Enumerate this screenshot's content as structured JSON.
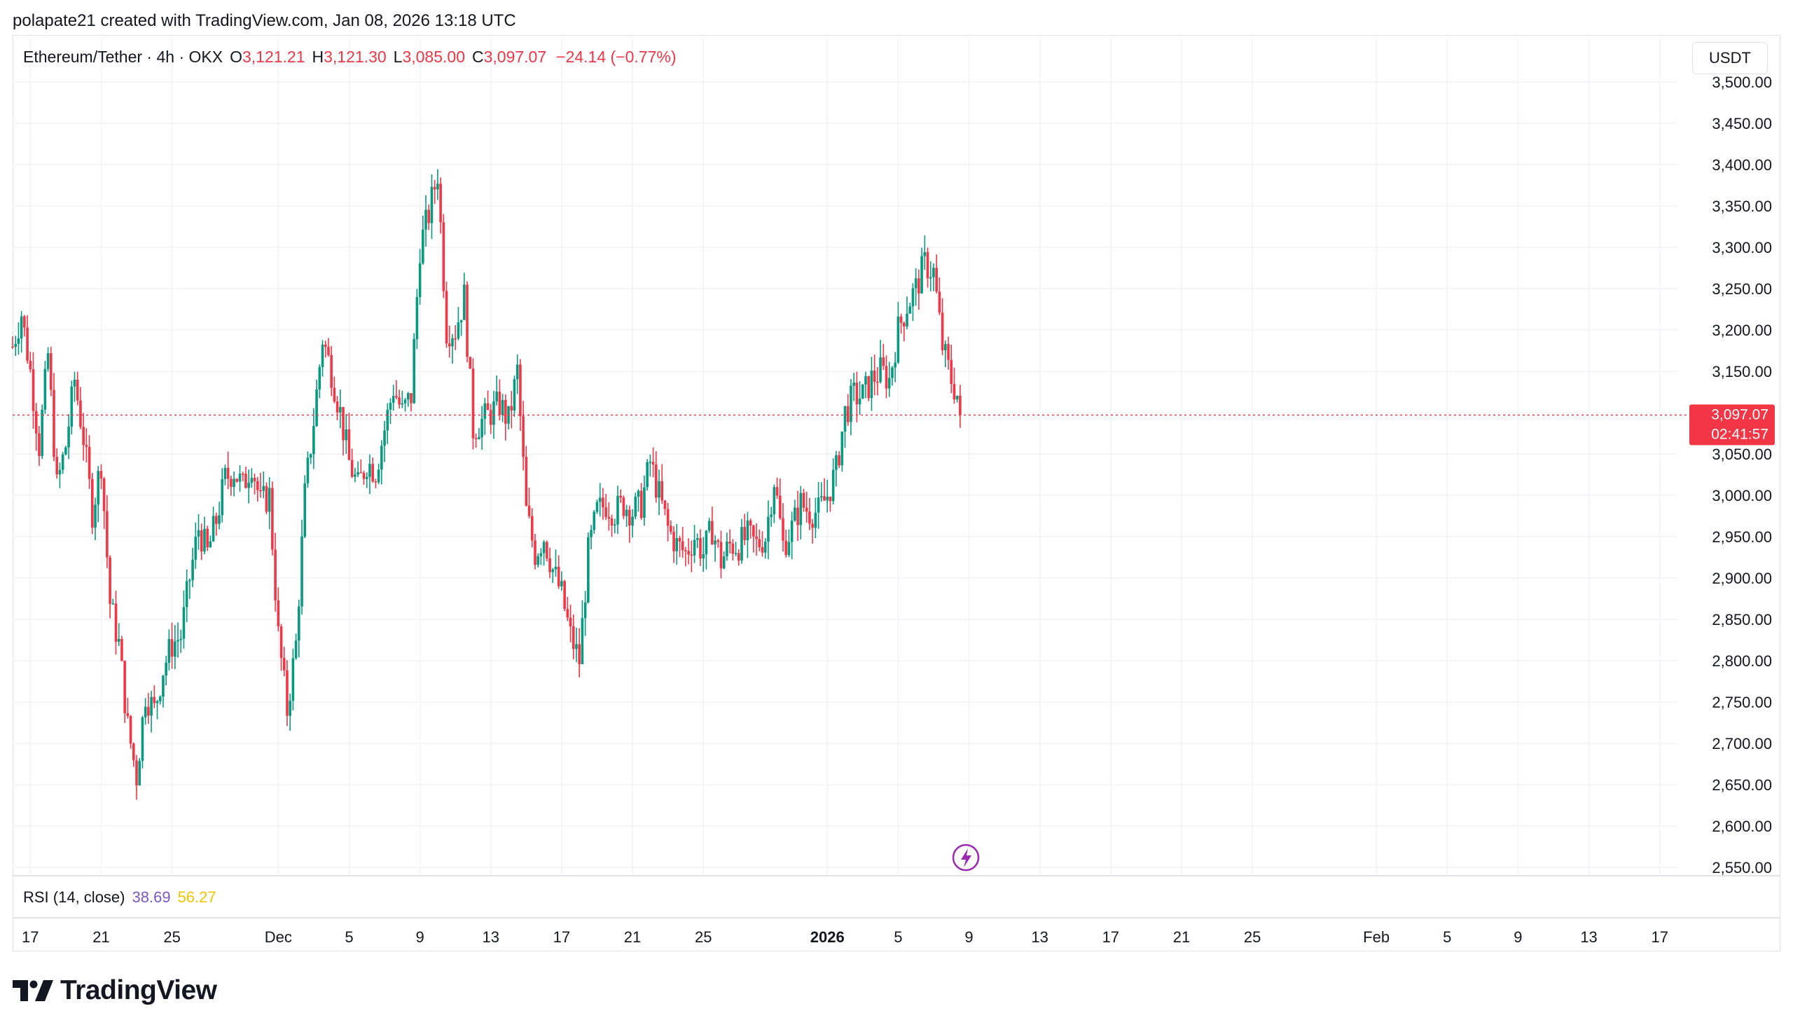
{
  "caption": "polapate21 created with TradingView.com, Jan 08, 2026 13:18 UTC",
  "legend": {
    "symbol": "Ethereum/Tether · 4h · OKX",
    "open_label": "O",
    "open": "3,121.21",
    "high_label": "H",
    "high": "3,121.30",
    "low_label": "L",
    "low": "3,085.00",
    "close_label": "C",
    "close": "3,097.07",
    "change": "−24.14 (−0.77%)"
  },
  "currency_button": "USDT",
  "price_badge": {
    "price": "3,097.07",
    "countdown": "02:41:57"
  },
  "rsi": {
    "label": "RSI (14, close)",
    "value1": "38.69",
    "value2": "56.27"
  },
  "brand": "TradingView",
  "colors": {
    "up": "#089981",
    "down": "#f23645",
    "grid": "#f0f3fa",
    "axis_text": "#131722",
    "last_price": "#f23645"
  },
  "icons": [
    "lightning-icon",
    "tradingview-logo-icon"
  ],
  "chart_data": {
    "type": "candlestick",
    "interval": "4h",
    "y_ticks": [
      2550,
      2600,
      2650,
      2700,
      2750,
      2800,
      2850,
      2900,
      2950,
      3000,
      3050,
      3100,
      3150,
      3200,
      3250,
      3300,
      3350,
      3400,
      3450,
      3500
    ],
    "y_tick_labels": [
      "2,550.00",
      "2,600.00",
      "2,650.00",
      "2,700.00",
      "2,750.00",
      "2,800.00",
      "2,850.00",
      "2,900.00",
      "2,950.00",
      "3,000.00",
      "3,050.00",
      "3,100.00",
      "3,150.00",
      "3,200.00",
      "3,250.00",
      "3,300.00",
      "3,350.00",
      "3,400.00",
      "3,450.00",
      "3,500.00"
    ],
    "ylim": [
      2540,
      3510
    ],
    "x_axis": [
      {
        "date": "2025-11-17",
        "label": "17"
      },
      {
        "date": "2025-11-21",
        "label": "21"
      },
      {
        "date": "2025-11-25",
        "label": "25"
      },
      {
        "date": "2025-12-01",
        "label": "Dec"
      },
      {
        "date": "2025-12-05",
        "label": "5"
      },
      {
        "date": "2025-12-09",
        "label": "9"
      },
      {
        "date": "2025-12-13",
        "label": "13"
      },
      {
        "date": "2025-12-17",
        "label": "17"
      },
      {
        "date": "2025-12-21",
        "label": "21"
      },
      {
        "date": "2025-12-25",
        "label": "25"
      },
      {
        "date": "2026-01-01",
        "label": "2026",
        "bold": true
      },
      {
        "date": "2026-01-05",
        "label": "5"
      },
      {
        "date": "2026-01-09",
        "label": "9"
      },
      {
        "date": "2026-01-13",
        "label": "13"
      },
      {
        "date": "2026-01-17",
        "label": "17"
      },
      {
        "date": "2026-01-21",
        "label": "21"
      },
      {
        "date": "2026-01-25",
        "label": "25"
      },
      {
        "date": "2026-02-01",
        "label": "Feb"
      },
      {
        "date": "2026-02-05",
        "label": "5"
      },
      {
        "date": "2026-02-09",
        "label": "9"
      },
      {
        "date": "2026-02-13",
        "label": "13"
      },
      {
        "date": "2026-02-17",
        "label": "17"
      }
    ],
    "xlim": [
      "2025-11-16",
      "2026-02-18"
    ],
    "last_price": 3097.07,
    "close_path": [
      {
        "date": "2025-11-16",
        "close": 3180
      },
      {
        "date": "2025-11-16 12:00",
        "close": 3220
      },
      {
        "date": "2025-11-17",
        "close": 3150
      },
      {
        "date": "2025-11-17 12:00",
        "close": 3060
      },
      {
        "date": "2025-11-18",
        "close": 3170
      },
      {
        "date": "2025-11-18 12:00",
        "close": 3010
      },
      {
        "date": "2025-11-19",
        "close": 3060
      },
      {
        "date": "2025-11-19 12:00",
        "close": 3140
      },
      {
        "date": "2025-11-20",
        "close": 3070
      },
      {
        "date": "2025-11-20 12:00",
        "close": 2980
      },
      {
        "date": "2025-11-21",
        "close": 3040
      },
      {
        "date": "2025-11-21 12:00",
        "close": 2870
      },
      {
        "date": "2025-11-22",
        "close": 2820
      },
      {
        "date": "2025-11-22 12:00",
        "close": 2720
      },
      {
        "date": "2025-11-23",
        "close": 2660
      },
      {
        "date": "2025-11-23 12:00",
        "close": 2760
      },
      {
        "date": "2025-11-24",
        "close": 2740
      },
      {
        "date": "2025-11-24 12:00",
        "close": 2790
      },
      {
        "date": "2025-11-25",
        "close": 2820
      },
      {
        "date": "2025-11-25 12:00",
        "close": 2830
      },
      {
        "date": "2025-11-26",
        "close": 2900
      },
      {
        "date": "2025-11-26 12:00",
        "close": 2960
      },
      {
        "date": "2025-11-27",
        "close": 2930
      },
      {
        "date": "2025-11-27 12:00",
        "close": 2970
      },
      {
        "date": "2025-11-28",
        "close": 3020
      },
      {
        "date": "2025-11-28 12:00",
        "close": 3030
      },
      {
        "date": "2025-11-29",
        "close": 3010
      },
      {
        "date": "2025-11-29 12:00",
        "close": 3040
      },
      {
        "date": "2025-11-30",
        "close": 2990
      },
      {
        "date": "2025-11-30 12:00",
        "close": 3000
      },
      {
        "date": "2025-12-01",
        "close": 2830
      },
      {
        "date": "2025-12-01 12:00",
        "close": 2740
      },
      {
        "date": "2025-12-02",
        "close": 2820
      },
      {
        "date": "2025-12-02 12:00",
        "close": 3000
      },
      {
        "date": "2025-12-03",
        "close": 3090
      },
      {
        "date": "2025-12-03 12:00",
        "close": 3190
      },
      {
        "date": "2025-12-04",
        "close": 3150
      },
      {
        "date": "2025-12-04 12:00",
        "close": 3100
      },
      {
        "date": "2025-12-05",
        "close": 3040
      },
      {
        "date": "2025-12-05 12:00",
        "close": 3010
      },
      {
        "date": "2025-12-06",
        "close": 3040
      },
      {
        "date": "2025-12-06 12:00",
        "close": 3030
      },
      {
        "date": "2025-12-07",
        "close": 3080
      },
      {
        "date": "2025-12-07 12:00",
        "close": 3130
      },
      {
        "date": "2025-12-08",
        "close": 3100
      },
      {
        "date": "2025-12-08 12:00",
        "close": 3120
      },
      {
        "date": "2025-12-09",
        "close": 3300
      },
      {
        "date": "2025-12-09 12:00",
        "close": 3340
      },
      {
        "date": "2025-12-10",
        "close": 3390
      },
      {
        "date": "2025-12-10 12:00",
        "close": 3200
      },
      {
        "date": "2025-12-11",
        "close": 3200
      },
      {
        "date": "2025-12-11 12:00",
        "close": 3240
      },
      {
        "date": "2025-12-12",
        "close": 3080
      },
      {
        "date": "2025-12-12 12:00",
        "close": 3090
      },
      {
        "date": "2025-12-13",
        "close": 3100
      },
      {
        "date": "2025-12-13 12:00",
        "close": 3110
      },
      {
        "date": "2025-12-14",
        "close": 3090
      },
      {
        "date": "2025-12-14 12:00",
        "close": 3150
      },
      {
        "date": "2025-12-15",
        "close": 2980
      },
      {
        "date": "2025-12-15 12:00",
        "close": 2930
      },
      {
        "date": "2025-12-16",
        "close": 2950
      },
      {
        "date": "2025-12-16 12:00",
        "close": 2910
      },
      {
        "date": "2025-12-17",
        "close": 2880
      },
      {
        "date": "2025-12-17 12:00",
        "close": 2830
      },
      {
        "date": "2025-12-18",
        "close": 2800
      },
      {
        "date": "2025-12-18 12:00",
        "close": 2930
      },
      {
        "date": "2025-12-19",
        "close": 2980
      },
      {
        "date": "2025-12-19 12:00",
        "close": 2990
      },
      {
        "date": "2025-12-20",
        "close": 2980
      },
      {
        "date": "2025-12-20 12:00",
        "close": 2990
      },
      {
        "date": "2025-12-21",
        "close": 2980
      },
      {
        "date": "2025-12-21 12:00",
        "close": 2990
      },
      {
        "date": "2025-12-22",
        "close": 3040
      },
      {
        "date": "2025-12-22 12:00",
        "close": 3000
      },
      {
        "date": "2025-12-23",
        "close": 2960
      },
      {
        "date": "2025-12-23 12:00",
        "close": 2940
      },
      {
        "date": "2025-12-24",
        "close": 2930
      },
      {
        "date": "2025-12-24 12:00",
        "close": 2950
      },
      {
        "date": "2025-12-25",
        "close": 2930
      },
      {
        "date": "2025-12-25 12:00",
        "close": 2960
      },
      {
        "date": "2025-12-26",
        "close": 2920
      },
      {
        "date": "2025-12-26 12:00",
        "close": 2940
      },
      {
        "date": "2025-12-27",
        "close": 2940
      },
      {
        "date": "2025-12-27 12:00",
        "close": 2950
      },
      {
        "date": "2025-12-28",
        "close": 2940
      },
      {
        "date": "2025-12-28 12:00",
        "close": 2950
      },
      {
        "date": "2025-12-29",
        "close": 3020
      },
      {
        "date": "2025-12-29 12:00",
        "close": 2940
      },
      {
        "date": "2025-12-30",
        "close": 2960
      },
      {
        "date": "2025-12-30 12:00",
        "close": 2990
      },
      {
        "date": "2025-12-31",
        "close": 2980
      },
      {
        "date": "2025-12-31 12:00",
        "close": 2980
      },
      {
        "date": "2026-01-01",
        "close": 3000
      },
      {
        "date": "2026-01-01 12:00",
        "close": 3030
      },
      {
        "date": "2026-01-02",
        "close": 3100
      },
      {
        "date": "2026-01-02 12:00",
        "close": 3120
      },
      {
        "date": "2026-01-03",
        "close": 3120
      },
      {
        "date": "2026-01-03 12:00",
        "close": 3140
      },
      {
        "date": "2026-01-04",
        "close": 3150
      },
      {
        "date": "2026-01-04 12:00",
        "close": 3140
      },
      {
        "date": "2026-01-05",
        "close": 3200
      },
      {
        "date": "2026-01-05 12:00",
        "close": 3230
      },
      {
        "date": "2026-01-06",
        "close": 3250
      },
      {
        "date": "2026-01-06 12:00",
        "close": 3280
      },
      {
        "date": "2026-01-07",
        "close": 3270
      },
      {
        "date": "2026-01-07 12:00",
        "close": 3180
      },
      {
        "date": "2026-01-08",
        "close": 3140
      },
      {
        "date": "2026-01-08 08:00",
        "close": 3121.21
      },
      {
        "date": "2026-01-08 12:00",
        "close": 3097.07
      }
    ]
  }
}
